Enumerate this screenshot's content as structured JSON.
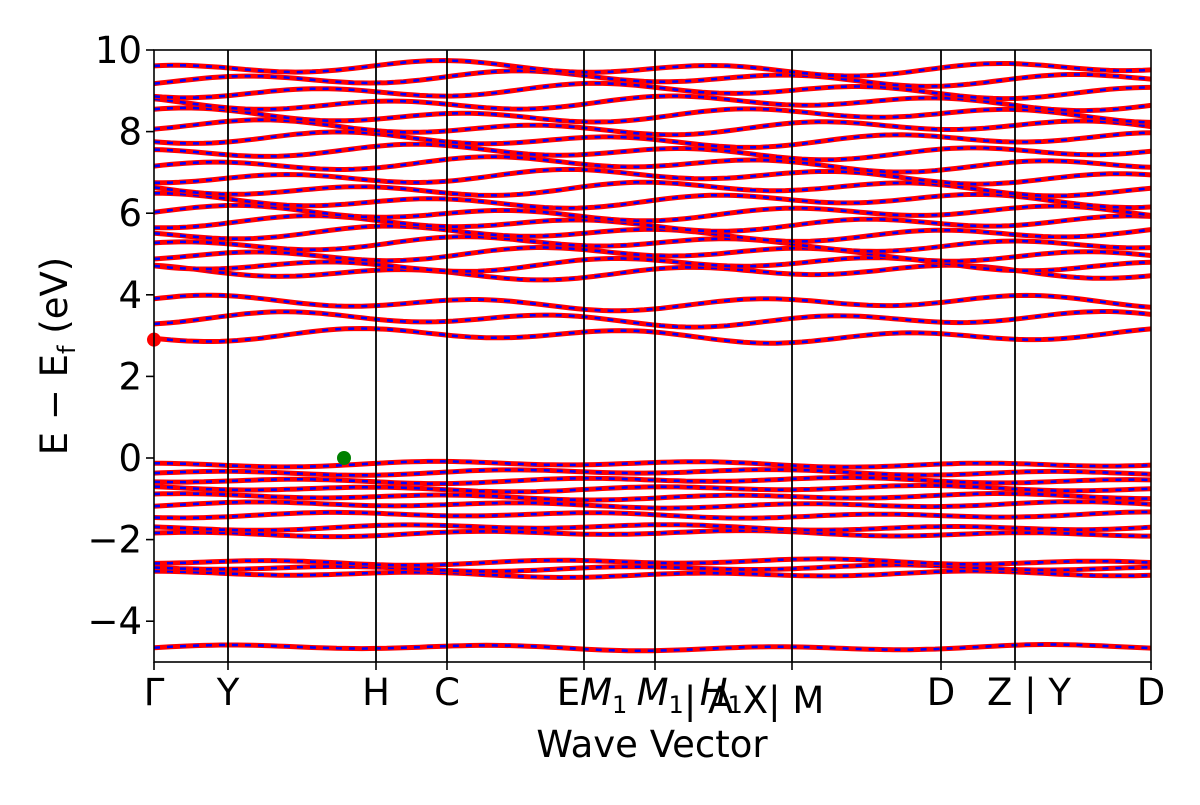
{
  "chart_data": {
    "type": "line",
    "title": "",
    "xlabel": "Wave Vector",
    "ylabel": "E − E_f (eV)",
    "ylim": [
      -5,
      10
    ],
    "yticks": [
      -4,
      -2,
      0,
      2,
      4,
      6,
      8,
      10
    ],
    "ytick_labels": [
      "−4",
      "−2",
      "0",
      "2",
      "4",
      "6",
      "8",
      "10"
    ],
    "grid": false,
    "legend": "none",
    "kpath": [
      "Γ",
      "Y",
      "H",
      "C",
      "E",
      "M_1",
      "A",
      "X",
      "H_1",
      "M",
      "D",
      "Z",
      "Y",
      "D"
    ],
    "segment_breaks": [
      {
        "left": "E",
        "right": "M_1"
      },
      {
        "left": "X",
        "right": "M"
      },
      {
        "left": "Z",
        "right": "Y"
      }
    ],
    "band_colors": {
      "spin_up": "#ff0000",
      "spin_down": "#0000ff"
    },
    "valence_bands": [
      -4.65,
      -2.85,
      -2.7,
      -2.55,
      -1.85,
      -1.7,
      -1.4,
      -1.15,
      -0.95,
      -0.75,
      -0.55,
      -0.35,
      -0.15
    ],
    "conduction_bands": [
      3.0,
      3.4,
      3.8,
      4.55,
      4.75,
      5.0,
      5.25,
      5.5,
      5.75,
      6.0,
      6.3,
      6.6,
      6.9,
      7.2,
      7.5,
      7.8,
      8.1,
      8.4,
      8.7,
      9.0,
      9.3,
      9.55
    ],
    "cbm": {
      "kpoint": "Γ",
      "energy": 2.9,
      "color": "#ff0000"
    },
    "vbm": {
      "kpoint_between": [
        "Y",
        "H"
      ],
      "energy": 0.0,
      "color": "#008000"
    }
  }
}
